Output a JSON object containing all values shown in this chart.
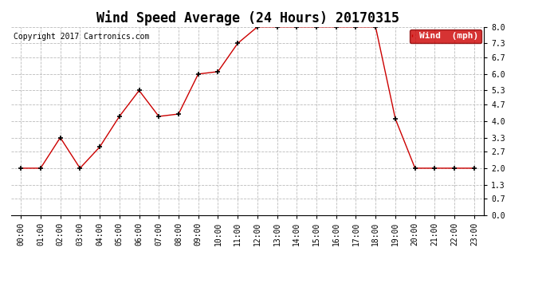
{
  "title": "Wind Speed Average (24 Hours) 20170315",
  "copyright": "Copyright 2017 Cartronics.com",
  "legend_label": "Wind  (mph)",
  "hours": [
    "00:00",
    "01:00",
    "02:00",
    "03:00",
    "04:00",
    "05:00",
    "06:00",
    "07:00",
    "08:00",
    "09:00",
    "10:00",
    "11:00",
    "12:00",
    "13:00",
    "14:00",
    "15:00",
    "16:00",
    "17:00",
    "18:00",
    "19:00",
    "20:00",
    "21:00",
    "22:00",
    "23:00"
  ],
  "wind_values": [
    2.0,
    2.0,
    3.3,
    2.0,
    2.9,
    4.2,
    5.3,
    4.2,
    4.3,
    6.0,
    6.1,
    7.3,
    8.0,
    8.0,
    8.0,
    8.0,
    8.0,
    8.0,
    8.0,
    4.1,
    2.0,
    2.0,
    2.0,
    2.0
  ],
  "line_color": "#cc0000",
  "marker_color": "#000000",
  "legend_bg": "#cc0000",
  "legend_text_color": "#ffffff",
  "background_color": "#ffffff",
  "grid_color": "#bbbbbb",
  "ylim": [
    0.0,
    8.0
  ],
  "yticks": [
    0.0,
    0.7,
    1.3,
    2.0,
    2.7,
    3.3,
    4.0,
    4.7,
    5.3,
    6.0,
    6.7,
    7.3,
    8.0
  ],
  "title_fontsize": 12,
  "copyright_fontsize": 7,
  "tick_fontsize": 7,
  "legend_fontsize": 8,
  "fig_width": 6.9,
  "fig_height": 3.75,
  "dpi": 100
}
